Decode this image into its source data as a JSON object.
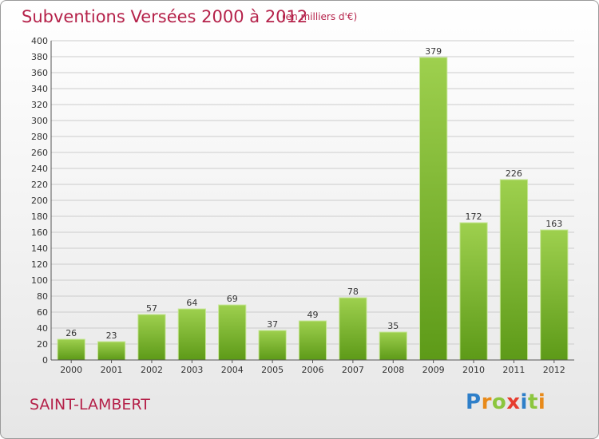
{
  "header": {
    "title": "Subventions Versées 2000 à 2012",
    "unit": "(en milliers d'€)"
  },
  "footer": {
    "place": "SAINT-LAMBERT",
    "brand": "Proxiti"
  },
  "colors": {
    "title": "#b5224a",
    "bar_top": "#9ed04e",
    "bar_bottom": "#5d9a18",
    "grid": "#cccccc"
  },
  "chart_data": {
    "type": "bar",
    "title": "Subventions Versées 2000 à 2012",
    "subtitle": "(en milliers d'€)",
    "xlabel": "",
    "ylabel": "",
    "categories": [
      "2000",
      "2001",
      "2002",
      "2003",
      "2004",
      "2005",
      "2006",
      "2007",
      "2008",
      "2009",
      "2010",
      "2011",
      "2012"
    ],
    "values": [
      26,
      23,
      57,
      64,
      69,
      37,
      49,
      78,
      35,
      379,
      172,
      226,
      163
    ],
    "ylim": [
      0,
      400
    ],
    "ytick_step": 20,
    "grid": true,
    "legend": "none"
  }
}
